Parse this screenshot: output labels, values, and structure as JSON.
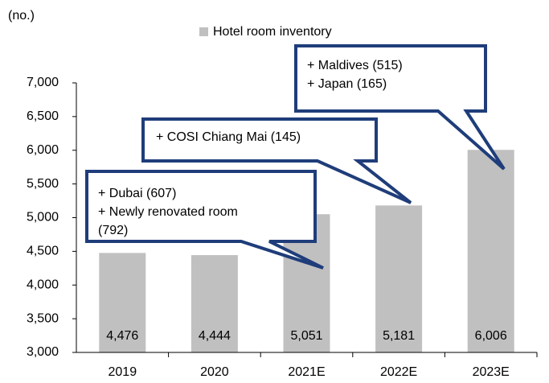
{
  "chart_data": {
    "type": "bar",
    "unit_label": "(no.)",
    "categories": [
      "2019",
      "2020",
      "2021E",
      "2022E",
      "2023E"
    ],
    "series": [
      {
        "name": "Hotel room inventory",
        "color": "#c0c0c0",
        "values": [
          4476,
          4444,
          5051,
          5181,
          6006
        ],
        "value_labels": [
          "4,476",
          "4,444",
          "5,051",
          "5,181",
          "6,006"
        ]
      }
    ],
    "ylim": [
      3000,
      7000
    ],
    "yticks": [
      {
        "value": 3000,
        "label": "3,000"
      },
      {
        "value": 3500,
        "label": "3,500"
      },
      {
        "value": 4000,
        "label": "4,000"
      },
      {
        "value": 4500,
        "label": "4,500"
      },
      {
        "value": 5000,
        "label": "5,000"
      },
      {
        "value": 5500,
        "label": "5,500"
      },
      {
        "value": 6000,
        "label": "6,000"
      },
      {
        "value": 6500,
        "label": "6,500"
      },
      {
        "value": 7000,
        "label": "7,000"
      }
    ],
    "legend": "top",
    "annotations": [
      [
        "+ Dubai (607)",
        "+ Newly renovated room",
        "(792)"
      ],
      [
        "+ COSI Chiang Mai (145)"
      ],
      [
        "+ Maldives (515)",
        "+ Japan (165)"
      ]
    ]
  }
}
